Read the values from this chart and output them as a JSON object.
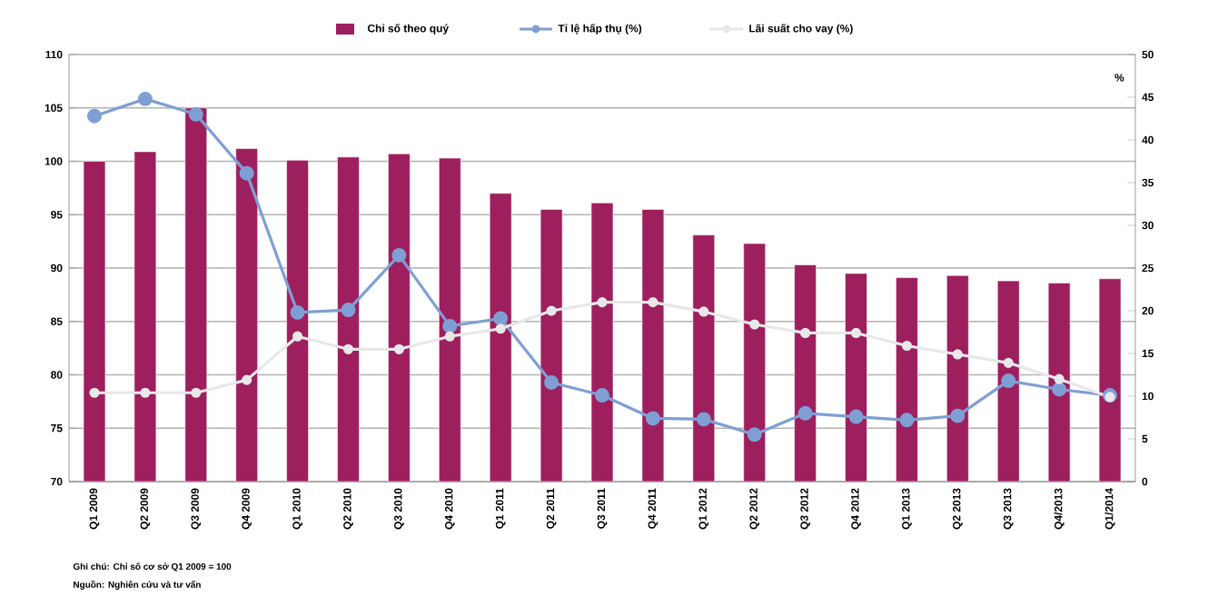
{
  "chart_data": {
    "type": "bar",
    "categories": [
      "Q1 2009",
      "Q2 2009",
      "Q3 2009",
      "Q4 2009",
      "Q1 2010",
      "Q2 2010",
      "Q3 2010",
      "Q4 2010",
      "Q1 2011",
      "Q2 2011",
      "Q3 2011",
      "Q4 2011",
      "Q1 2012",
      "Q2 2012",
      "Q3 2012",
      "Q4 2012",
      "Q1 2013",
      "Q2 2013",
      "Q3 2013",
      "Q4/2013",
      "Q1/2014"
    ],
    "series": [
      {
        "name": "Chỉ số theo quý",
        "color": "#9e1f5e",
        "values": [
          100.0,
          100.9,
          105.0,
          101.2,
          100.1,
          100.4,
          100.7,
          100.3,
          97.0,
          95.5,
          96.1,
          95.5,
          93.1,
          92.3,
          90.3,
          89.5,
          89.1,
          89.3,
          88.8,
          88.6,
          89.0
        ]
      },
      {
        "name": "Tỉ lệ hấp thụ (%)",
        "type": "line",
        "axis": "y2",
        "color": "#7f9fd4",
        "values": [
          42.8,
          44.8,
          43.0,
          36.1,
          19.8,
          20.1,
          26.5,
          18.2,
          19.1,
          11.6,
          10.1,
          7.4,
          7.3,
          5.5,
          8.0,
          7.6,
          7.2,
          7.7,
          11.8,
          10.8,
          10.1
        ]
      },
      {
        "name": "Lãi suất cho vay (%)",
        "type": "line",
        "axis": "y2",
        "color": "#e8e8e8",
        "values": [
          10.4,
          10.4,
          10.4,
          11.9,
          17.0,
          15.5,
          15.5,
          17.0,
          17.9,
          20.0,
          21.0,
          21.0,
          19.9,
          18.4,
          17.4,
          17.4,
          15.9,
          14.9,
          13.9,
          12.0,
          9.9
        ]
      }
    ],
    "ylim": [
      70,
      110
    ],
    "yticks": [
      70,
      75,
      80,
      85,
      90,
      95,
      100,
      105,
      110
    ],
    "y2lim": [
      0,
      50
    ],
    "y2ticks": [
      0,
      5,
      10,
      15,
      20,
      25,
      30,
      35,
      40,
      45,
      50
    ],
    "y2label": "%",
    "grid": "y",
    "legend": "top",
    "marker": "circle",
    "annotations": [
      "Ghi chú: Chỉ số cơ sở Q1 2009 = 100",
      "Nguồn: Nghiên cứu và tư vấn"
    ]
  }
}
